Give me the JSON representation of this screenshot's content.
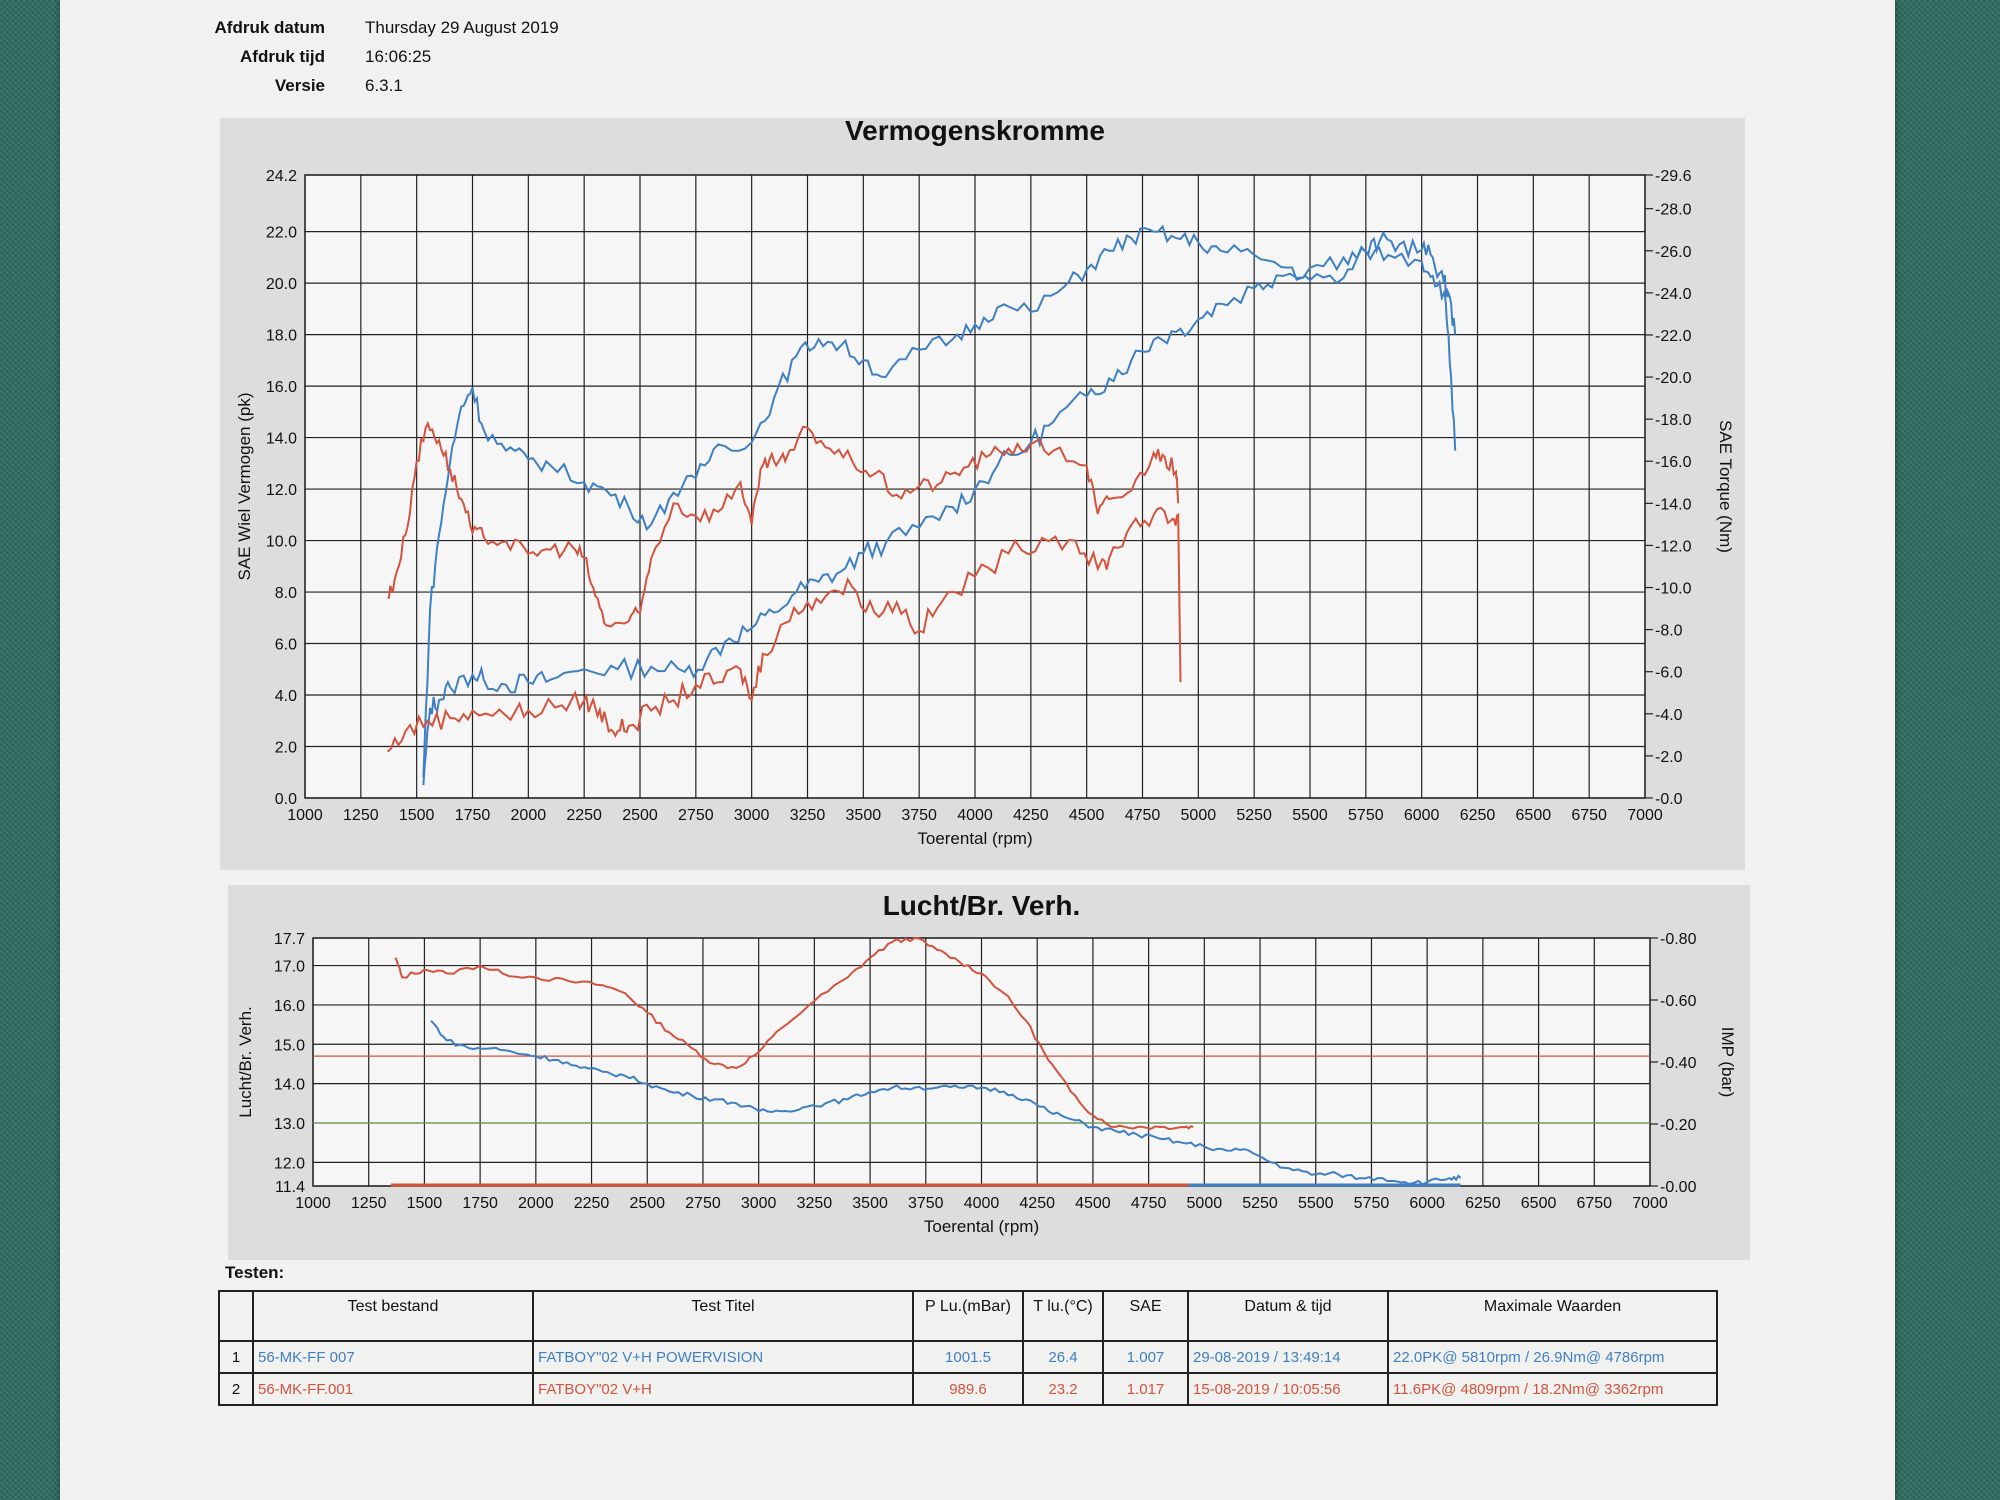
{
  "meta": {
    "print_date_label": "Afdruk datum",
    "print_date": "Thursday 29 August 2019",
    "print_time_label": "Afdruk tijd",
    "print_time": "16:06:25",
    "version_label": "Versie",
    "version": "6.3.1"
  },
  "colors": {
    "blue": "#3f7fc4",
    "red": "#d4533f",
    "panel": "#dddddd",
    "plot_bg": "#f6f6f6"
  },
  "chart_data": [
    {
      "type": "line",
      "title": "Vermogenskromme",
      "xlabel": "Toerental (rpm)",
      "ylabel": "SAE Wiel Vermogen (pk)",
      "y2label": "SAE Torque (Nm)",
      "xlim": [
        1000,
        7000
      ],
      "ylim": [
        0.0,
        24.2
      ],
      "y2lim": [
        0.0,
        29.6
      ],
      "x_ticks": [
        "1000",
        "1250",
        "1500",
        "1750",
        "2000",
        "2250",
        "2500",
        "2750",
        "3000",
        "3250",
        "3500",
        "3750",
        "4000",
        "4250",
        "4500",
        "4750",
        "5000",
        "5250",
        "5500",
        "5750",
        "6000",
        "6250",
        "6500",
        "6750",
        "7000"
      ],
      "y_ticks": [
        "0.0",
        "2.0",
        "4.0",
        "6.0",
        "8.0",
        "10.0",
        "12.0",
        "14.0",
        "16.0",
        "18.0",
        "20.0",
        "22.0",
        "24.2"
      ],
      "y2_ticks": [
        "0.0",
        "2.0",
        "4.0",
        "6.0",
        "8.0",
        "10.0",
        "12.0",
        "14.0",
        "16.0",
        "18.0",
        "20.0",
        "22.0",
        "24.0",
        "26.0",
        "28.0",
        "29.6"
      ],
      "grid": true,
      "series": [
        {
          "color": "#3f7fc4",
          "axis": "left",
          "x": [
            1530,
            1560,
            1600,
            1650,
            1750,
            1800,
            1900,
            2000,
            2100,
            2250,
            2400,
            2550,
            2700,
            2800,
            2900,
            3000,
            3100,
            3200,
            3300,
            3400,
            3500,
            3600,
            3750,
            3900,
            4000,
            4100,
            4250,
            4350,
            4500,
            4600,
            4700,
            4800,
            4900,
            5000,
            5100,
            5250,
            5350,
            5500,
            5650,
            5750,
            5810,
            5900,
            6000,
            6050,
            6100,
            6120,
            6150
          ],
          "y": [
            0.5,
            3.5,
            3.8,
            4.3,
            4.8,
            4.6,
            4.4,
            4.5,
            4.6,
            5.0,
            5.0,
            5.1,
            4.9,
            5.4,
            6.2,
            6.6,
            7.2,
            8.0,
            8.4,
            8.8,
            9.5,
            9.9,
            10.5,
            11.3,
            12.0,
            12.9,
            13.8,
            14.6,
            15.6,
            16.3,
            17.0,
            17.8,
            18.1,
            18.6,
            19.2,
            19.8,
            20.3,
            20.6,
            21.0,
            21.2,
            21.6,
            21.5,
            21.3,
            21.0,
            20.0,
            19.6,
            18.0
          ]
        },
        {
          "color": "#3f7fc4",
          "axis": "right",
          "x": [
            1530,
            1560,
            1600,
            1650,
            1700,
            1750,
            1800,
            1900,
            2000,
            2100,
            2250,
            2350,
            2450,
            2550,
            2650,
            2750,
            2850,
            3000,
            3100,
            3200,
            3300,
            3400,
            3500,
            3600,
            3750,
            3900,
            4000,
            4100,
            4250,
            4400,
            4500,
            4600,
            4700,
            4800,
            4900,
            5000,
            5100,
            5250,
            5400,
            5500,
            5650,
            5750,
            5850,
            6000,
            6050,
            6100,
            6120,
            6150
          ],
          "y": [
            1.0,
            9.0,
            12.5,
            16.0,
            18.6,
            19.5,
            17.5,
            16.5,
            16.1,
            15.8,
            15.0,
            14.6,
            13.8,
            13.0,
            14.5,
            15.2,
            16.8,
            16.9,
            19.0,
            21.0,
            21.8,
            21.5,
            20.8,
            20.0,
            21.3,
            21.8,
            22.5,
            23.3,
            23.1,
            24.3,
            25.1,
            26.0,
            26.6,
            26.9,
            26.6,
            26.4,
            26.0,
            25.8,
            25.2,
            24.6,
            24.7,
            26.0,
            25.8,
            25.5,
            24.8,
            24.0,
            22.0,
            16.5
          ]
        },
        {
          "color": "#d4533f",
          "axis": "left",
          "x": [
            1370,
            1450,
            1550,
            1650,
            1750,
            1900,
            2000,
            2150,
            2250,
            2300,
            2350,
            2400,
            2450,
            2550,
            2650,
            2750,
            2850,
            2950,
            3000,
            3050,
            3150,
            3250,
            3350,
            3450,
            3550,
            3650,
            3750,
            3850,
            4000,
            4150,
            4300,
            4450,
            4550,
            4600,
            4700,
            4800,
            4880,
            4910,
            4920
          ],
          "y": [
            1.8,
            2.6,
            3.0,
            3.1,
            3.4,
            3.2,
            3.4,
            3.6,
            3.8,
            3.5,
            3.0,
            2.6,
            2.8,
            3.4,
            3.8,
            4.4,
            4.5,
            5.0,
            3.8,
            5.6,
            6.8,
            7.6,
            8.0,
            8.2,
            7.2,
            7.6,
            6.5,
            7.6,
            8.6,
            9.5,
            10.1,
            10.0,
            8.9,
            9.3,
            10.6,
            11.0,
            10.8,
            11.0,
            4.5
          ]
        },
        {
          "color": "#d4533f",
          "axis": "right",
          "x": [
            1370,
            1400,
            1450,
            1500,
            1550,
            1600,
            1650,
            1700,
            1750,
            1800,
            1900,
            2000,
            2100,
            2200,
            2250,
            2300,
            2350,
            2450,
            2500,
            2550,
            2650,
            2750,
            2850,
            2950,
            3000,
            3050,
            3100,
            3150,
            3250,
            3350,
            3450,
            3550,
            3650,
            3750,
            3850,
            3950,
            4050,
            4150,
            4250,
            4350,
            4500,
            4550,
            4600,
            4700,
            4800,
            4850,
            4900,
            4910
          ],
          "y": [
            9.5,
            10.3,
            12.5,
            16.0,
            17.8,
            17.0,
            15.6,
            14.2,
            12.6,
            12.4,
            12.2,
            11.6,
            11.8,
            11.9,
            11.4,
            9.6,
            8.2,
            8.4,
            8.8,
            11.4,
            14.0,
            13.4,
            13.6,
            15.0,
            13.0,
            15.8,
            16.0,
            16.0,
            17.6,
            16.6,
            16.0,
            15.4,
            14.4,
            14.8,
            15.0,
            15.7,
            16.2,
            16.6,
            16.8,
            16.5,
            15.8,
            13.5,
            14.2,
            14.6,
            16.4,
            16.2,
            15.5,
            14.0
          ]
        }
      ]
    },
    {
      "type": "line",
      "title": "Lucht/Br. Verh.",
      "xlabel": "Toerental (rpm)",
      "ylabel": "Lucht/Br. Verh.",
      "y2label": "IMP (bar)",
      "xlim": [
        1000,
        7000
      ],
      "ylim": [
        11.4,
        17.7
      ],
      "y2lim": [
        0.0,
        0.8
      ],
      "x_ticks": [
        "1000",
        "1250",
        "1500",
        "1750",
        "2000",
        "2250",
        "2500",
        "2750",
        "3000",
        "3250",
        "3500",
        "3750",
        "4000",
        "4250",
        "4500",
        "4750",
        "5000",
        "5250",
        "5500",
        "5750",
        "6000",
        "6250",
        "6500",
        "6750",
        "7000"
      ],
      "y_ticks": [
        "11.4",
        "12.0",
        "13.0",
        "14.0",
        "15.0",
        "16.0",
        "17.0",
        "17.7"
      ],
      "y2_ticks": [
        "0.00",
        "0.20",
        "0.40",
        "0.60",
        "0.80"
      ],
      "reference_lines": [
        {
          "y": 14.7,
          "color": "#d4533f"
        },
        {
          "y": 13.0,
          "color": "#7aa85a"
        }
      ],
      "grid": true,
      "series": [
        {
          "color": "#d4533f",
          "x": [
            1370,
            1400,
            1500,
            1600,
            1750,
            1850,
            2000,
            2150,
            2300,
            2400,
            2500,
            2600,
            2700,
            2800,
            2900,
            3000,
            3100,
            3250,
            3400,
            3500,
            3600,
            3700,
            3800,
            3900,
            4000,
            4100,
            4200,
            4300,
            4400,
            4500,
            4600,
            4700,
            4800,
            4900,
            4950
          ],
          "y": [
            17.2,
            16.7,
            16.9,
            16.8,
            17.0,
            16.8,
            16.7,
            16.6,
            16.5,
            16.3,
            15.8,
            15.3,
            14.9,
            14.5,
            14.4,
            14.8,
            15.4,
            16.1,
            16.7,
            17.2,
            17.6,
            17.7,
            17.4,
            17.1,
            16.8,
            16.3,
            15.6,
            14.6,
            13.8,
            13.2,
            12.9,
            12.9,
            12.9,
            12.9,
            12.9
          ]
        },
        {
          "color": "#3f7fc4",
          "x": [
            1530,
            1600,
            1700,
            1800,
            1900,
            2000,
            2100,
            2200,
            2300,
            2400,
            2500,
            2600,
            2700,
            2800,
            2900,
            3000,
            3100,
            3200,
            3300,
            3400,
            3500,
            3600,
            3700,
            3800,
            3900,
            4000,
            4100,
            4200,
            4300,
            4400,
            4500,
            4600,
            4700,
            4800,
            4900,
            5000,
            5100,
            5200,
            5300,
            5400,
            5500,
            5600,
            5700,
            5800,
            5900,
            6000,
            6100,
            6150
          ],
          "y": [
            15.6,
            15.1,
            14.9,
            14.9,
            14.8,
            14.7,
            14.6,
            14.4,
            14.3,
            14.2,
            14.0,
            13.8,
            13.7,
            13.6,
            13.5,
            13.3,
            13.3,
            13.4,
            13.5,
            13.6,
            13.8,
            13.9,
            13.9,
            13.9,
            13.9,
            13.9,
            13.8,
            13.6,
            13.3,
            13.1,
            12.9,
            12.8,
            12.7,
            12.6,
            12.5,
            12.4,
            12.3,
            12.3,
            12.0,
            11.8,
            11.7,
            11.7,
            11.6,
            11.6,
            11.5,
            11.5,
            11.6,
            11.6
          ]
        }
      ],
      "imp_series": [
        {
          "color": "#d4533f",
          "x": [
            1350,
            4930
          ],
          "y": [
            0.0,
            0.0
          ]
        },
        {
          "color": "#3f7fc4",
          "x": [
            4930,
            6150
          ],
          "y": [
            0.0,
            0.0
          ]
        }
      ]
    }
  ],
  "tests": {
    "title": "Testen:",
    "headers": [
      "",
      "Test bestand",
      "Test Titel",
      "P Lu.(mBar)",
      "T lu.(°C)",
      "SAE",
      "Datum & tijd",
      "Maximale Waarden"
    ],
    "rows": [
      [
        "1",
        "56-MK-FF 007",
        "FATBOY\"02 V+H POWERVISION",
        "1001.5",
        "26.4",
        "1.007",
        "29-08-2019 / 13:49:14",
        "22.0PK@ 5810rpm / 26.9Nm@ 4786rpm"
      ],
      [
        "2",
        "56-MK-FF.001",
        "FATBOY\"02 V+H",
        "989.6",
        "23.2",
        "1.017",
        "15-08-2019 / 10:05:56",
        "11.6PK@ 4809rpm / 18.2Nm@ 3362rpm"
      ]
    ]
  }
}
